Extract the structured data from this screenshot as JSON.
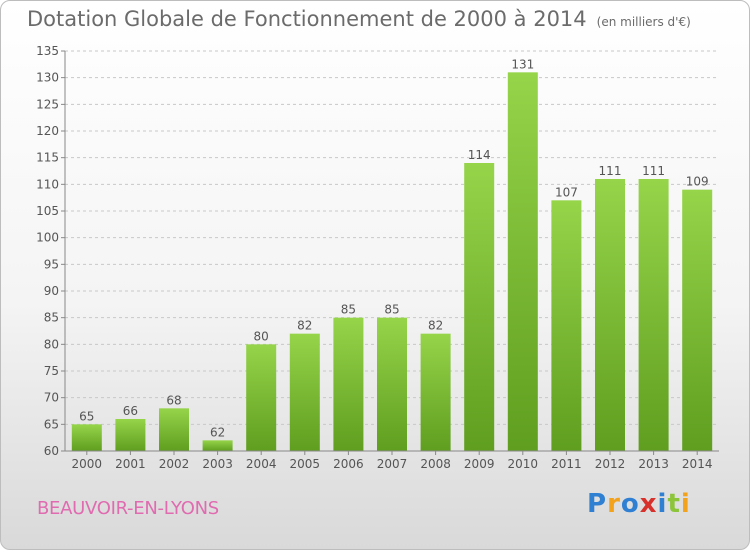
{
  "title": "Dotation Globale de Fonctionnement de 2000 à 2014",
  "unit": "(en milliers d'€)",
  "commune": "BEAUVOIR-EN-LYONS",
  "logo": {
    "letters": [
      "P",
      "r",
      "o",
      "x",
      "i",
      "t",
      "i"
    ],
    "colors": [
      "#2f7fd3",
      "#f2a21b",
      "#2f7fd3",
      "#d8302a",
      "#2f7fd3",
      "#8cc43a",
      "#f2a21b"
    ]
  },
  "chart_data": {
    "type": "bar",
    "categories": [
      "2000",
      "2001",
      "2002",
      "2003",
      "2004",
      "2005",
      "2006",
      "2007",
      "2008",
      "2009",
      "2010",
      "2011",
      "2012",
      "2013",
      "2014"
    ],
    "values": [
      65,
      66,
      68,
      62,
      80,
      82,
      85,
      85,
      82,
      114,
      131,
      107,
      111,
      111,
      109
    ],
    "ylim": [
      60,
      135
    ],
    "yticks": [
      60,
      65,
      70,
      75,
      80,
      85,
      90,
      95,
      100,
      105,
      110,
      115,
      120,
      125,
      130,
      135
    ],
    "grid": true,
    "bar_color": "#7cc234",
    "bar_color_dark": "#5f9e1f"
  }
}
